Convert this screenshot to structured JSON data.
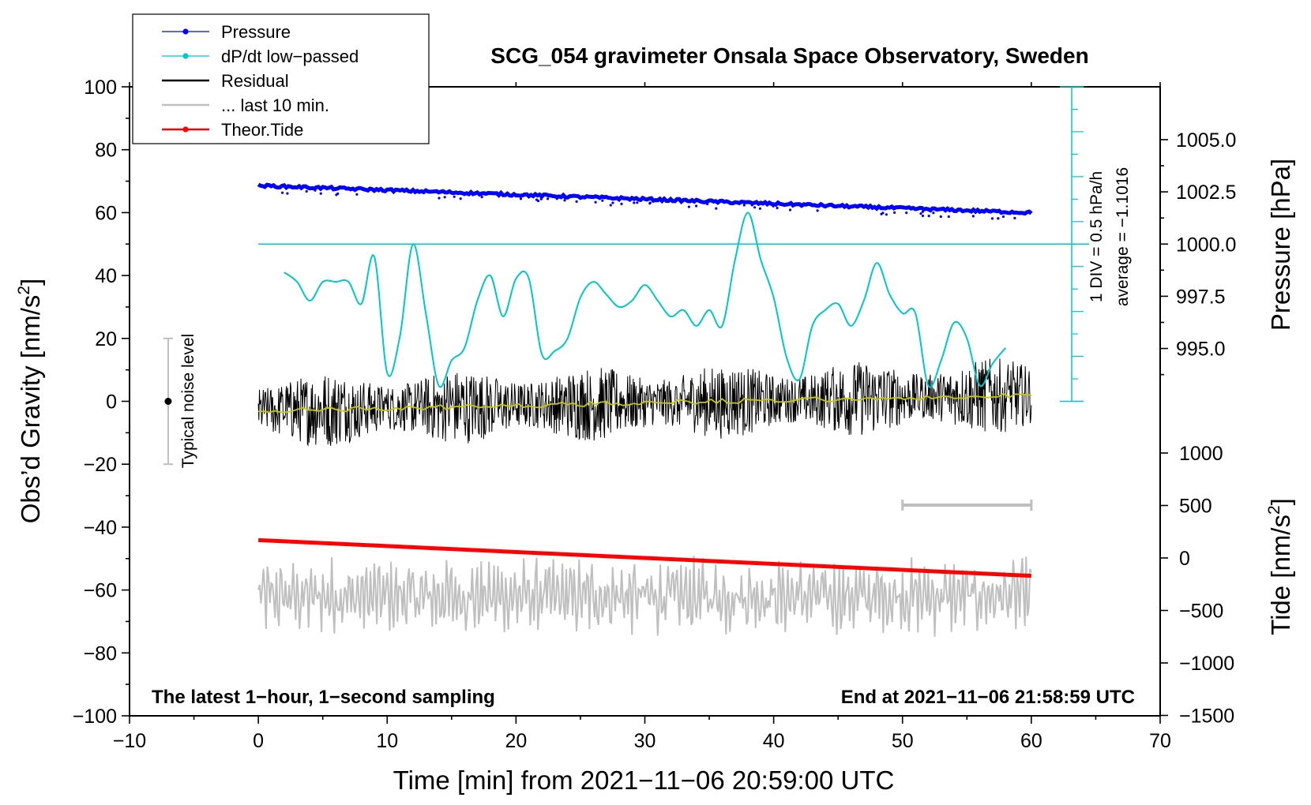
{
  "chart_data": {
    "type": "line",
    "title": "SCG_054 gravimeter Onsala Space Observatory, Sweden",
    "xlabel": "Time [min] from 2021−11−06 20:59:00 UTC",
    "ylabel_left": "Obs’d Gravity [nm/s",
    "ylabel_left_sup": "2",
    "ylabel_left_end": "]",
    "ylabel_right_top": "Pressure [hPa]",
    "ylabel_right_bottom": "Tide [nm/s",
    "ylabel_right_bottom_sup": "2",
    "ylabel_right_bottom_end": "]",
    "xlim": [
      -10,
      70
    ],
    "ylim": [
      -100,
      100
    ],
    "x_ticks": [
      -10,
      0,
      10,
      20,
      30,
      40,
      50,
      60,
      70
    ],
    "x_tick_labels": [
      "−10",
      "0",
      "10",
      "20",
      "30",
      "40",
      "50",
      "60",
      "70"
    ],
    "y_ticks": [
      100,
      80,
      60,
      40,
      20,
      0,
      -20,
      -40,
      -60,
      -80,
      -100
    ],
    "y_tick_labels": [
      "100",
      "80",
      "60",
      "40",
      "20",
      "0",
      "−20",
      "−40",
      "−60",
      "−80",
      "−100"
    ],
    "pressure_axis": {
      "ticks": [
        1005.0,
        1002.5,
        1000.0,
        997.5,
        995.0
      ],
      "tick_labels": [
        "1005.0",
        "1002.5",
        "1000.0",
        "997.5",
        "995.0"
      ]
    },
    "tide_axis": {
      "ticks": [
        1000,
        500,
        0,
        -500,
        -1000,
        -1500
      ],
      "tick_labels": [
        "1000",
        "500",
        "0",
        "−500",
        "−1000",
        "−1500"
      ]
    },
    "legend": [
      {
        "label": "Pressure",
        "color": "#0000ff",
        "marker": true
      },
      {
        "label": "dP/dt low−passed",
        "color": "#00c8c8",
        "marker": true
      },
      {
        "label": "Residual",
        "color": "#000000",
        "marker": false
      },
      {
        "label": "... last 10 min.",
        "color": "#bfbfbf",
        "marker": false
      },
      {
        "label": "Theor.Tide",
        "color": "#ff0000",
        "marker": true
      }
    ],
    "series": [
      {
        "name": "Pressure",
        "axis": "pressure",
        "x": [
          0,
          60
        ],
        "values": [
          1002.8,
          1001.5
        ]
      },
      {
        "name": "dP/dt low-passed",
        "axis": "gravity_scaled",
        "x": [
          2,
          3,
          4,
          5,
          6,
          7,
          8,
          9,
          10,
          11,
          12,
          13,
          14,
          15,
          16,
          17,
          18,
          19,
          20,
          21,
          22,
          23,
          24,
          25,
          26,
          27,
          28,
          29,
          30,
          31,
          32,
          33,
          34,
          35,
          36,
          37,
          38,
          39,
          40,
          41,
          42,
          43,
          44,
          45,
          46,
          47,
          48,
          49,
          50,
          51,
          52,
          53,
          54,
          55,
          56,
          57,
          58
        ],
        "values": [
          41,
          38,
          32,
          38,
          38,
          38,
          31,
          46,
          9,
          21,
          50,
          28,
          5,
          13,
          17,
          32,
          40,
          27,
          39,
          39,
          15,
          16,
          20,
          33,
          38,
          34,
          30,
          32,
          37,
          32,
          27,
          29,
          24,
          29,
          24,
          45,
          60,
          45,
          33,
          14,
          7,
          24,
          29,
          31,
          24,
          32,
          44,
          34,
          28,
          28,
          5,
          13,
          25,
          20,
          5,
          12,
          17
        ]
      },
      {
        "name": "Residual",
        "axis": "gravity",
        "x_range": [
          0,
          60
        ],
        "mean_start": -3,
        "mean_end": 2,
        "amplitude": 15
      },
      {
        "name": "... last 10 min.",
        "axis": "gravity_offset",
        "x_range": [
          0,
          60
        ],
        "center": -62,
        "amplitude": 12
      },
      {
        "name": "Theor.Tide",
        "axis": "tide",
        "x": [
          0,
          60
        ],
        "values": [
          170,
          -170
        ]
      }
    ],
    "annotations": {
      "noise_label": "Typical noise level",
      "div_label": "1 DIV = 0.5 hPa/h",
      "average_label": "average = −1.1016",
      "footer_left": "The latest 1−hour, 1−second sampling",
      "footer_right": "End at 2021−11−06 21:58:59 UTC"
    }
  }
}
